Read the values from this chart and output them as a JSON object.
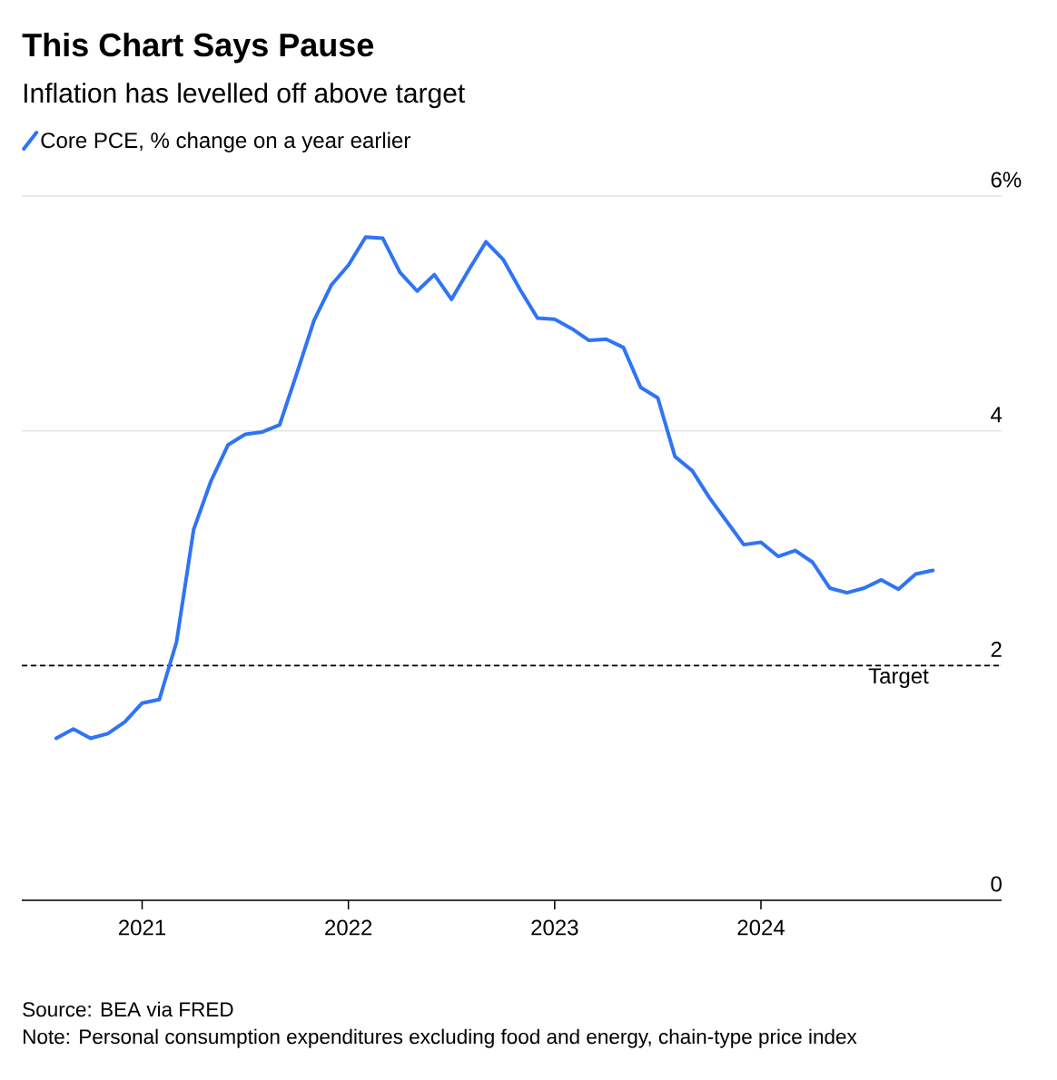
{
  "chart_data": {
    "type": "line",
    "title": "This Chart Says Pause",
    "subtitle": "Inflation has levelled off above target",
    "x": [
      "2020-08",
      "2020-09",
      "2020-10",
      "2020-11",
      "2020-12",
      "2021-01",
      "2021-02",
      "2021-03",
      "2021-04",
      "2021-05",
      "2021-06",
      "2021-07",
      "2021-08",
      "2021-09",
      "2021-10",
      "2021-11",
      "2021-12",
      "2022-01",
      "2022-02",
      "2022-03",
      "2022-04",
      "2022-05",
      "2022-06",
      "2022-07",
      "2022-08",
      "2022-09",
      "2022-10",
      "2022-11",
      "2022-12",
      "2023-01",
      "2023-02",
      "2023-03",
      "2023-04",
      "2023-05",
      "2023-06",
      "2023-07",
      "2023-08",
      "2023-09",
      "2023-10",
      "2023-11",
      "2023-12",
      "2024-01",
      "2024-02",
      "2024-03",
      "2024-04",
      "2024-05",
      "2024-06",
      "2024-07",
      "2024-08",
      "2024-09",
      "2024-10",
      "2024-11"
    ],
    "series": [
      {
        "name": "Core PCE, % change on a year earlier",
        "color": "#2f74f5",
        "values": [
          1.38,
          1.46,
          1.38,
          1.42,
          1.52,
          1.68,
          1.71,
          2.2,
          3.16,
          3.57,
          3.88,
          3.97,
          3.99,
          4.05,
          4.49,
          4.94,
          5.24,
          5.41,
          5.65,
          5.64,
          5.35,
          5.19,
          5.33,
          5.12,
          5.37,
          5.61,
          5.46,
          5.2,
          4.96,
          4.95,
          4.87,
          4.77,
          4.78,
          4.71,
          4.37,
          4.28,
          3.78,
          3.66,
          3.43,
          3.23,
          3.03,
          3.05,
          2.93,
          2.98,
          2.88,
          2.66,
          2.62,
          2.66,
          2.73,
          2.65,
          2.78,
          2.81
        ]
      }
    ],
    "xlim": [
      "2020-06",
      "2025-03"
    ],
    "xticks": [
      "2021",
      "2022",
      "2023",
      "2024"
    ],
    "ylim": [
      0,
      6
    ],
    "yticks": [
      0,
      2,
      4,
      {
        "value": 6,
        "label": "6%"
      }
    ],
    "grid": "y",
    "legend": "top left",
    "ref_lines": [
      {
        "axis": "y",
        "value": 2,
        "label": "Target",
        "color": "#000000",
        "line_style": "dashed"
      }
    ],
    "annotations": [
      "Source: BEA via FRED",
      "Note: Personal consumption expenditures excluding food and energy, chain-type price index"
    ]
  }
}
